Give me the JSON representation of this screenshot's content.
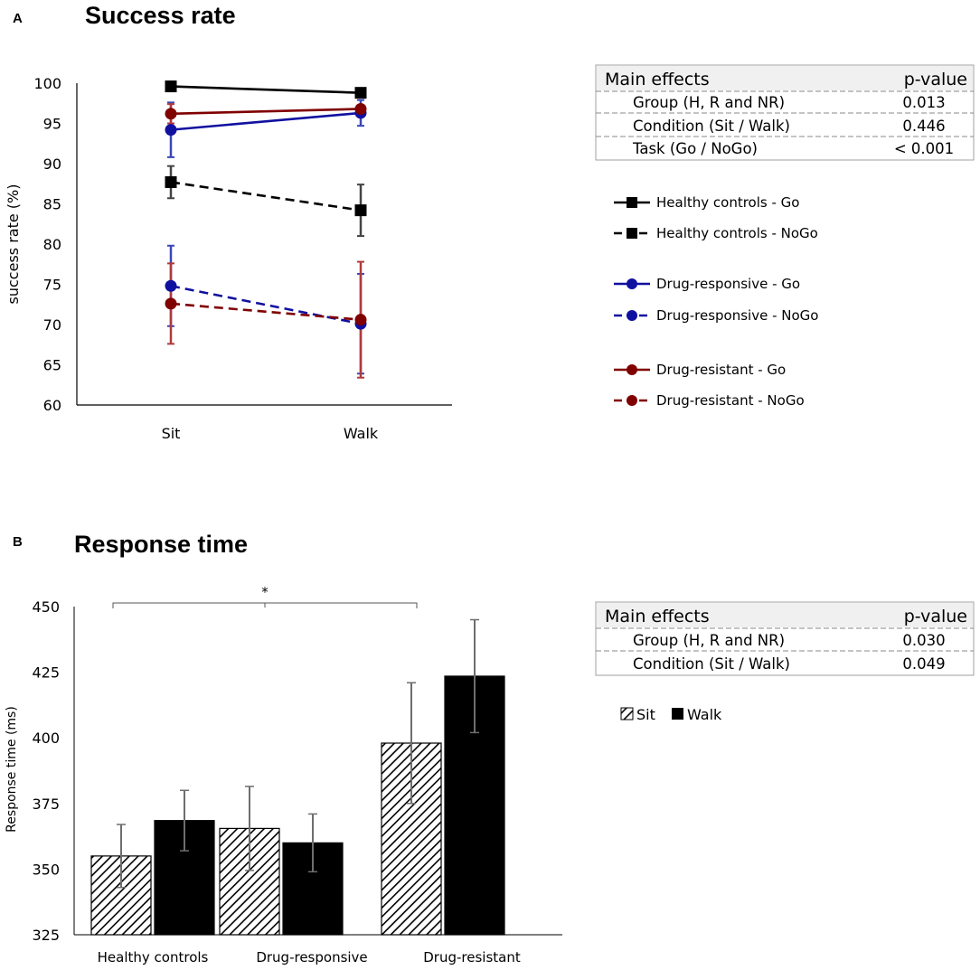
{
  "chart_data": [
    {
      "panel": "A",
      "type": "line",
      "title": "Success rate",
      "xlabel": "",
      "ylabel": "success rate (%)",
      "categories": [
        "Sit",
        "Walk"
      ],
      "ylim": [
        60,
        100
      ],
      "yticks": [
        "60",
        "65",
        "70",
        "75",
        "80",
        "85",
        "90",
        "95",
        "100"
      ],
      "series": [
        {
          "name": "Healthy controls - Go",
          "color": "#000000",
          "marker": "square",
          "dashed": false,
          "values": [
            99.6,
            98.8
          ],
          "err": [
            0,
            0
          ]
        },
        {
          "name": "Healthy controls - NoGo",
          "color": "#000000",
          "marker": "square",
          "dashed": true,
          "values": [
            87.7,
            84.2
          ],
          "err": [
            2,
            3.2
          ]
        },
        {
          "name": "Drug-responsive - Go",
          "color": "#1010a0",
          "marker": "circle",
          "dashed": false,
          "values": [
            94.2,
            96.3
          ],
          "err": [
            3.4,
            1.6
          ]
        },
        {
          "name": "Drug-responsive - NoGo",
          "color": "#1010a0",
          "marker": "circle",
          "dashed": true,
          "values": [
            74.8,
            70.1
          ],
          "err": [
            5,
            6.2
          ]
        },
        {
          "name": "Drug-resistant - Go",
          "color": "#800000",
          "marker": "circle",
          "dashed": false,
          "values": [
            96.2,
            96.8
          ],
          "err": [
            1.2,
            0
          ]
        },
        {
          "name": "Drug-resistant - NoGo",
          "color": "#800000",
          "marker": "circle",
          "dashed": true,
          "values": [
            72.6,
            70.6
          ],
          "err": [
            5,
            7.2
          ]
        }
      ],
      "table": {
        "header": [
          "Main effects",
          "p-value"
        ],
        "rows": [
          [
            "Group (H, R and NR)",
            "0.013"
          ],
          [
            "Condition (Sit / Walk)",
            "0.446"
          ],
          [
            "Task (Go / NoGo)",
            "< 0.001"
          ]
        ]
      }
    },
    {
      "panel": "B",
      "type": "bar",
      "title": "Response time",
      "xlabel": "",
      "ylabel": "Response time (ms)",
      "categories": [
        "Healthy controls",
        "Drug-responsive",
        "Drug-resistant"
      ],
      "ylim": [
        325,
        450
      ],
      "yticks": [
        "325",
        "350",
        "375",
        "400",
        "425",
        "450"
      ],
      "series": [
        {
          "name": "Sit",
          "pattern": "hatched",
          "values": [
            355,
            365.5,
            398
          ],
          "err": [
            12,
            16,
            23
          ]
        },
        {
          "name": "Walk",
          "pattern": "solid",
          "values": [
            368.5,
            360,
            423.5
          ],
          "err": [
            11.5,
            11,
            21.5
          ]
        }
      ],
      "significance": {
        "label": "*",
        "between": [
          "Healthy controls",
          "Drug-resistant"
        ]
      },
      "table": {
        "header": [
          "Main effects",
          "p-value"
        ],
        "rows": [
          [
            "Group (H, R and NR)",
            "0.030"
          ],
          [
            "Condition (Sit / Walk)",
            "0.049"
          ]
        ]
      }
    }
  ]
}
